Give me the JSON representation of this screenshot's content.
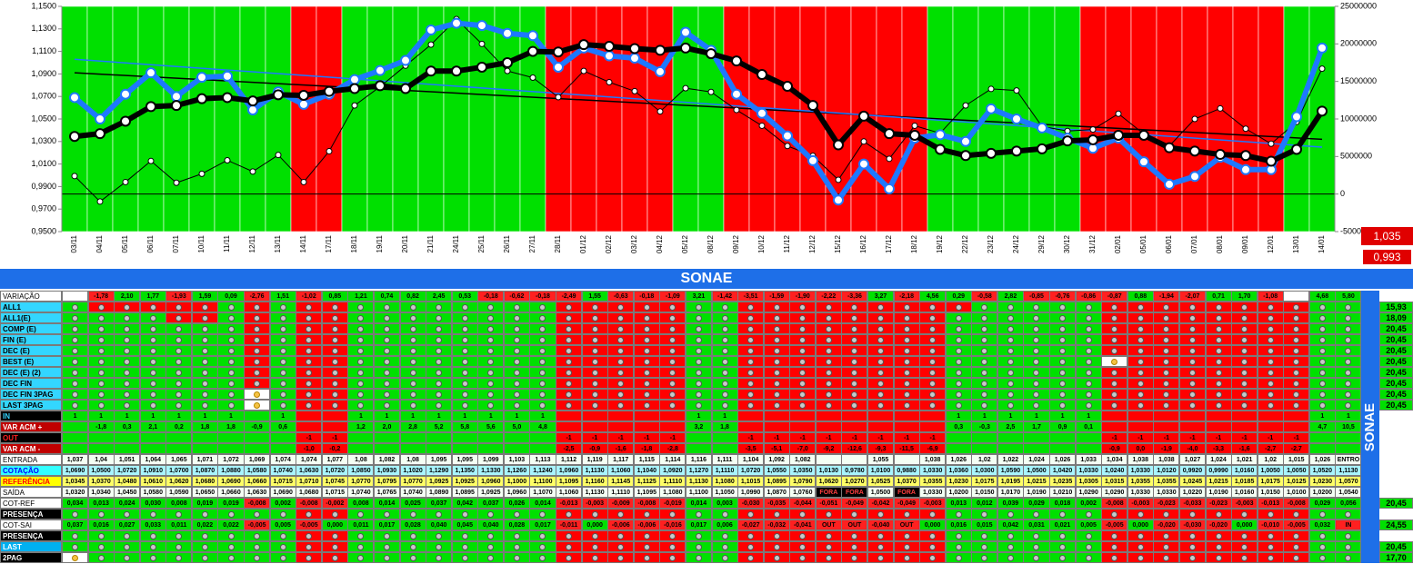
{
  "chart_data": {
    "type": "line",
    "dates": [
      "03/11",
      "04/11",
      "05/11",
      "06/11",
      "07/11",
      "10/11",
      "11/11",
      "12/11",
      "13/11",
      "14/11",
      "17/11",
      "18/11",
      "19/11",
      "20/11",
      "21/11",
      "24/11",
      "25/11",
      "26/11",
      "27/11",
      "28/11",
      "01/12",
      "02/12",
      "03/12",
      "04/12",
      "05/12",
      "08/12",
      "09/12",
      "10/12",
      "11/12",
      "12/12",
      "15/12",
      "16/12",
      "17/12",
      "18/12",
      "19/12",
      "22/12",
      "23/12",
      "24/12",
      "29/12",
      "30/12",
      "31/12",
      "02/01",
      "05/01",
      "06/01",
      "07/01",
      "08/01",
      "09/01",
      "12/01",
      "13/01",
      "14/01"
    ],
    "bands": "GGGGGGGGGRRGGGGGGGGRRRRRGGRRRRRRRRGGGGGGRRRRRRRRGG",
    "band_colors": {
      "G": "#00e000",
      "R": "#ff0000"
    },
    "series": [
      {
        "color": "#000000",
        "values": [
          1.0345,
          1.037,
          1.048,
          1.061,
          1.062,
          1.068,
          1.069,
          1.066,
          1.0715,
          1.071,
          1.0745,
          1.077,
          1.0795,
          1.077,
          1.0925,
          1.0925,
          1.096,
          1.1,
          1.11,
          1.1095,
          1.116,
          1.1145,
          1.1125,
          1.111,
          1.113,
          1.108,
          1.1015,
          1.0895,
          1.079,
          1.062,
          1.027,
          1.0525,
          1.037,
          1.0355,
          1.023,
          1.0175,
          1.0195,
          1.0215,
          1.0235,
          1.0305,
          1.0315,
          1.0355,
          1.0355,
          1.0245,
          1.0215,
          1.0185,
          1.0175,
          1.0125,
          1.023,
          1.057
        ]
      },
      {
        "color": "#1e78ff",
        "values": [
          1.069,
          1.05,
          1.072,
          1.091,
          1.07,
          1.087,
          1.088,
          1.058,
          1.074,
          1.063,
          1.072,
          1.085,
          1.093,
          1.102,
          1.129,
          1.135,
          1.133,
          1.126,
          1.124,
          1.096,
          1.113,
          1.106,
          1.104,
          1.092,
          1.127,
          1.111,
          1.072,
          1.055,
          1.035,
          1.013,
          0.978,
          1.01,
          0.988,
          1.033,
          1.036,
          1.03,
          1.059,
          1.05,
          1.042,
          1.033,
          1.024,
          1.033,
          1.012,
          0.992,
          0.999,
          1.016,
          1.005,
          1.005,
          1.052,
          1.113
        ]
      },
      {
        "color": "#000000",
        "axis": "y2",
        "values": [
          2400000,
          -1000000,
          1600000,
          4400000,
          1500000,
          2700000,
          4500000,
          3000000,
          5200000,
          1600000,
          5700000,
          11800000,
          14300000,
          17100000,
          19900000,
          23300000,
          20000000,
          16400000,
          15500000,
          12900000,
          16400000,
          14900000,
          13700000,
          11000000,
          14100000,
          13600000,
          11200000,
          9100000,
          6400000,
          5100000,
          1900000,
          7000000,
          4700000,
          9100000,
          8100000,
          11800000,
          14000000,
          13800000,
          9000000,
          8400000,
          8600000,
          10700000,
          8000000,
          6400000,
          10000000,
          11400000,
          8700000,
          6700000,
          9600000,
          16700000
        ]
      }
    ],
    "trendlines": [
      {
        "color": "#000000",
        "values": [
          1.091,
          1.032
        ]
      },
      {
        "color": "#1e78ff",
        "values": [
          1.103,
          1.025
        ]
      }
    ],
    "ylim": [
      0.95,
      1.15
    ],
    "yticks": [
      {
        "value": 0.95,
        "label": "0,9500"
      },
      {
        "value": 0.97,
        "label": "0,9700"
      },
      {
        "value": 0.99,
        "label": "0,9900"
      },
      {
        "value": 1.01,
        "label": "1,0100"
      },
      {
        "value": 1.03,
        "label": "1,0300"
      },
      {
        "value": 1.05,
        "label": "1,0500"
      },
      {
        "value": 1.07,
        "label": "1,0700"
      },
      {
        "value": 1.09,
        "label": "1,0900"
      },
      {
        "value": 1.11,
        "label": "1,1100"
      },
      {
        "value": 1.13,
        "label": "1,1300"
      },
      {
        "value": 1.15,
        "label": "1,1500"
      }
    ],
    "y2lim": [
      -5000000,
      25000000
    ],
    "y2ticks": [
      -5000000,
      0,
      5000000,
      10000000,
      15000000,
      20000000,
      25000000
    ],
    "indicators": [
      "1,035",
      "0,993"
    ]
  },
  "table": {
    "title": "SONAE",
    "side_title": "SONAE",
    "rows": [
      {
        "label": "VARIAÇÃO",
        "kind": "var",
        "cells": [
          null,
          "-1,78",
          "2,10",
          "1,77",
          "-1,93",
          "1,59",
          "0,09",
          "-2,76",
          "1,51",
          "-1,02",
          "0,85",
          "1,21",
          "0,74",
          "0,82",
          "2,45",
          "0,53",
          "-0,18",
          "-0,62",
          "-0,18",
          "-2,49",
          "1,55",
          "-0,63",
          "-0,18",
          "-1,09",
          "3,21",
          "-1,42",
          "-3,51",
          "-1,59",
          "-1,90",
          "-2,22",
          "-3,36",
          "3,27",
          "-2,18",
          "4,56",
          "0,29",
          "-0,58",
          "2,82",
          "-0,85",
          "-0,76",
          "-0,86",
          "-0,87",
          "0,88",
          "-1,94",
          "-2,07",
          "0,71",
          "1,70",
          "-1,08",
          null,
          "4,68",
          "5,80"
        ]
      },
      {
        "label": "ALL1",
        "kind": "signal",
        "pattern": "GRRRRRGRGRRGGGGGGGGRRRRRGGRRRRRRRRRGGGGGRRRRRRRRGG",
        "right": "15,93"
      },
      {
        "label": "ALL1(E)",
        "kind": "signal",
        "pattern": "GGGGRRGRGRRGGGGGGGGRRRRRGGRRRRRRRRGGGGGGRRRRRRRRGG",
        "right": "18,09"
      },
      {
        "label": "COMP (E)",
        "kind": "signal",
        "pattern": "GGGGGGGRGRRGGGGGGGGRRRRRGGRRRRRRRRGGGGGGRRRRRRRRGG",
        "right": "20,45"
      },
      {
        "label": "FIN (E)",
        "kind": "signal",
        "pattern": "GGGGGGGRGRRGGGGGGGGRRRRRGGRRRRRRRRGGGGGGRRRRRRRRGG",
        "right": "20,45"
      },
      {
        "label": "DEC (E)",
        "kind": "signal",
        "pattern": "GGGGGGGRGRRGGGGGGGGRRRRRGGRRRRRRRRGGGGGGRRRRRRRRGG",
        "right": "20,45"
      },
      {
        "label": "BEST (E)",
        "kind": "signal",
        "pattern": "GGGGGGGRGRRGGGGGGGGRRRRRGGRRRRRRRRGGGGGGYRRRRRRRGG",
        "right": "20,45"
      },
      {
        "label": "DEC (E) (2)",
        "kind": "signal",
        "pattern": "GGGGGGGRGRRGGGGGGGGRRRRRGGRRRRRRRRGGGGGGRRRRRRRRGG",
        "right": "20,45"
      },
      {
        "label": "DEC FIN",
        "kind": "signal",
        "pattern": "GGGGGGGRGRRGGGGGGGGRRRRRGGRRRRRRRRGGGGGGRRRRRRRRGG",
        "right": "20,45"
      },
      {
        "label": "DEC FIN 3PAG",
        "kind": "signal",
        "pattern": "GGGGGGGYGRRGGGGGGGGRRRRRGGRRRRRRRRGGGGGGRRRRRRRRGG",
        "right": "20,45"
      },
      {
        "label": "LAST 3PAG",
        "kind": "signal",
        "pattern": "GGGGGGGYGRRGGGGGGGGRRRRRGGRRRRRRRRGGGGGGRRRRRRRRGG",
        "right": "20,45"
      },
      {
        "label": "IN",
        "kind": "band",
        "cells": [
          "1",
          "1",
          "1",
          "1",
          "1",
          "1",
          "1",
          null,
          "1",
          null,
          null,
          "1",
          "1",
          "1",
          "1",
          "1",
          "1",
          "1",
          "1",
          null,
          null,
          null,
          null,
          null,
          "1",
          "1",
          null,
          null,
          null,
          null,
          null,
          null,
          null,
          null,
          "1",
          "1",
          "1",
          "1",
          "1",
          "1",
          null,
          null,
          null,
          null,
          null,
          null,
          null,
          null,
          "1",
          "1"
        ]
      },
      {
        "label": "VAR ACM +",
        "kind": "band",
        "cells": [
          null,
          "-1,8",
          "0,3",
          "2,1",
          "0,2",
          "1,8",
          "1,8",
          "-0,9",
          "0,6",
          null,
          null,
          "1,2",
          "2,0",
          "2,8",
          "5,2",
          "5,8",
          "5,6",
          "5,0",
          "4,8",
          null,
          null,
          null,
          null,
          null,
          "3,2",
          "1,8",
          null,
          null,
          null,
          null,
          null,
          null,
          null,
          null,
          "0,3",
          "-0,3",
          "2,5",
          "1,7",
          "0,9",
          "0,1",
          null,
          null,
          null,
          null,
          null,
          null,
          null,
          null,
          "4,7",
          "10,5"
        ]
      },
      {
        "label": "OUT",
        "kind": "band",
        "cells": [
          null,
          null,
          null,
          null,
          null,
          null,
          null,
          null,
          null,
          "-1",
          "-1",
          null,
          null,
          null,
          null,
          null,
          null,
          null,
          null,
          "-1",
          "-1",
          "-1",
          "-1",
          "-1",
          null,
          null,
          "-1",
          "-1",
          "-1",
          "-1",
          "-1",
          "-1",
          "-1",
          "-1",
          null,
          null,
          null,
          null,
          null,
          null,
          "-1",
          "-1",
          "-1",
          "-1",
          "-1",
          "-1",
          "-1",
          "-1",
          null,
          null
        ]
      },
      {
        "label": "VAR ACM -",
        "kind": "band",
        "cells": [
          null,
          null,
          null,
          null,
          null,
          null,
          null,
          null,
          null,
          "-1,0",
          "-0,2",
          null,
          null,
          null,
          null,
          null,
          null,
          null,
          null,
          "-2,5",
          "-0,9",
          "-1,6",
          "-1,8",
          "-2,8",
          null,
          null,
          "-3,5",
          "-5,1",
          "-7,0",
          "-9,2",
          "-12,6",
          "-9,3",
          "-11,5",
          "-6,9",
          null,
          null,
          null,
          null,
          null,
          null,
          "-0,9",
          "0,0",
          "-1,9",
          "-4,0",
          "-3,3",
          "-1,6",
          "-2,7",
          "-2,7",
          null,
          null
        ]
      },
      {
        "label": "ENTRADA",
        "kind": "plain",
        "cells": [
          "1,037",
          "1,04",
          "1,051",
          "1,064",
          "1,065",
          "1,071",
          "1,072",
          "1,069",
          "1,074",
          "1,074",
          "1,077",
          "1,08",
          "1,082",
          "1,08",
          "1,095",
          "1,095",
          "1,099",
          "1,103",
          "1,113",
          "1,112",
          "1,119",
          "1,117",
          "1,115",
          "1,114",
          "1,116",
          "1,111",
          "1,104",
          "1,092",
          "1,082",
          null,
          null,
          "1,055",
          null,
          "1,038",
          "1,026",
          "1,02",
          "1,022",
          "1,024",
          "1,026",
          "1,033",
          "1,034",
          "1,038",
          "1,038",
          "1,027",
          "1,024",
          "1,021",
          "1,02",
          "1,015",
          "1,026",
          "ENTRO"
        ]
      },
      {
        "label": "COTAÇÃO",
        "kind": "cyan",
        "cells": [
          "1,0690",
          "1,0500",
          "1,0720",
          "1,0910",
          "1,0700",
          "1,0870",
          "1,0880",
          "1,0580",
          "1,0740",
          "1,0630",
          "1,0720",
          "1,0850",
          "1,0930",
          "1,1020",
          "1,1290",
          "1,1350",
          "1,1330",
          "1,1260",
          "1,1240",
          "1,0960",
          "1,1130",
          "1,1060",
          "1,1040",
          "1,0920",
          "1,1270",
          "1,1110",
          "1,0720",
          "1,0550",
          "1,0350",
          "1,0130",
          "0,9780",
          "1,0100",
          "0,9880",
          "1,0330",
          "1,0360",
          "1,0300",
          "1,0590",
          "1,0500",
          "1,0420",
          "1,0330",
          "1,0240",
          "1,0330",
          "1,0120",
          "0,9920",
          "0,9990",
          "1,0160",
          "1,0050",
          "1,0050",
          "1,0520",
          "1,1130"
        ]
      },
      {
        "label": "REFERÊNCIA",
        "kind": "yellow",
        "cells": [
          "1,0345",
          "1,0370",
          "1,0480",
          "1,0610",
          "1,0620",
          "1,0680",
          "1,0690",
          "1,0660",
          "1,0715",
          "1,0710",
          "1,0745",
          "1,0770",
          "1,0795",
          "1,0770",
          "1,0925",
          "1,0925",
          "1,0960",
          "1,1000",
          "1,1100",
          "1,1095",
          "1,1160",
          "1,1145",
          "1,1125",
          "1,1110",
          "1,1130",
          "1,1080",
          "1,1015",
          "1,0895",
          "1,0790",
          "1,0620",
          "1,0270",
          "1,0525",
          "1,0370",
          "1,0355",
          "1,0230",
          "1,0175",
          "1,0195",
          "1,0215",
          "1,0235",
          "1,0305",
          "1,0315",
          "1,0355",
          "1,0355",
          "1,0245",
          "1,0215",
          "1,0185",
          "1,0175",
          "1,0125",
          "1,0230",
          "1,0570"
        ]
      },
      {
        "label": "SAÍDA",
        "kind": "plain",
        "cells": [
          "1,0320",
          "1,0340",
          "1,0450",
          "1,0580",
          "1,0590",
          "1,0650",
          "1,0660",
          "1,0630",
          "1,0690",
          "1,0680",
          "1,0715",
          "1,0740",
          "1,0765",
          "1,0740",
          "1,0890",
          "1,0895",
          "1,0925",
          "1,0960",
          "1,1070",
          "1,1060",
          "1,1130",
          "1,1110",
          "1,1095",
          "1,1080",
          "1,1100",
          "1,1050",
          "1,0990",
          "1,0870",
          "1,0760",
          "FORA",
          "FORA",
          "1,0500",
          "FORA",
          "1,0330",
          "1,0200",
          "1,0150",
          "1,0170",
          "1,0190",
          "1,0210",
          "1,0290",
          "1,0290",
          "1,0330",
          "1,0330",
          "1,0220",
          "1,0190",
          "1,0160",
          "1,0150",
          "1,0100",
          "1,0200",
          "1,0540"
        ]
      },
      {
        "label": "COT-REF",
        "kind": "sign",
        "cells": [
          "0,034",
          "0,013",
          "0,024",
          "0,030",
          "0,008",
          "0,019",
          "0,019",
          "-0,008",
          "0,002",
          "-0,008",
          "-0,002",
          "0,008",
          "0,014",
          "0,025",
          "0,037",
          "0,042",
          "0,037",
          "0,026",
          "0,014",
          "-0,013",
          "-0,003",
          "-0,009",
          "-0,008",
          "-0,019",
          "0,014",
          "0,003",
          "-0,030",
          "-0,035",
          "-0,044",
          "-0,051",
          "-0,049",
          "-0,042",
          "-0,049",
          "-0,003",
          "0,013",
          "0,012",
          "0,039",
          "0,029",
          "0,018",
          "0,002",
          "-0,008",
          "-0,003",
          "-0,023",
          "-0,033",
          "-0,023",
          "-0,003",
          "-0,013",
          "-0,008",
          "0,029",
          "0,056"
        ],
        "right": "20,45"
      },
      {
        "label": "PRESENÇA",
        "kind": "signal",
        "pattern": "GGGGGGGGGRRGGGGGGGGRRRRRGGRRRRRRRRGGGGGGRRRRRRRRGG"
      },
      {
        "label": "COT-SAI",
        "kind": "sign",
        "cells": [
          "0,037",
          "0,016",
          "0,027",
          "0,033",
          "0,011",
          "0,022",
          "0,022",
          "-0,005",
          "0,005",
          "-0,005",
          "0,000",
          "0,011",
          "0,017",
          "0,028",
          "0,040",
          "0,045",
          "0,040",
          "0,028",
          "0,017",
          "-0,011",
          "0,000",
          "-0,006",
          "-0,006",
          "-0,016",
          "0,017",
          "0,006",
          "-0,027",
          "-0,032",
          "-0,041",
          "OUT",
          "OUT",
          "-0,040",
          "OUT",
          "0,000",
          "0,016",
          "0,015",
          "0,042",
          "0,031",
          "0,021",
          "0,005",
          "-0,005",
          "0,000",
          "-0,020",
          "-0,030",
          "-0,020",
          "0,000",
          "-0,010",
          "-0,005",
          "0,032",
          "IN"
        ],
        "right": "24,55"
      },
      {
        "label": "PRESENÇA",
        "kind": "signal",
        "pattern": "GGGGGGGGGRRGGGGGGGGRRRRRGGRRRRRRRRGGGGGGRRRRRRRRGG"
      },
      {
        "label": "LAST",
        "kind": "signal",
        "pattern": "GGGGGGGGGRRGGGGGGGGRRRRRGGRRRRRRRRGGGGGGRRRRRRRRGG",
        "right": "20,45"
      },
      {
        "label": "2PAG",
        "kind": "signal",
        "pattern": "YGGGGGGGGRRGGGGGGGGRRRRRGGRRRRRRRRGGGGGGRRRRRRRRGG",
        "right": "17,70"
      }
    ]
  }
}
